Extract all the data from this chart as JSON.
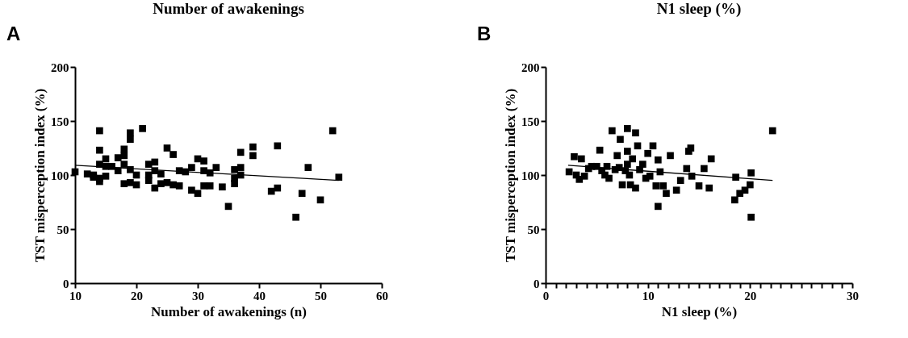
{
  "chart_data": [
    {
      "type": "scatter",
      "title": "Number of awakenings",
      "xlabel": "Number of awakenings (n)",
      "ylabel": "TST misperception index (%)",
      "annotations": [
        "A"
      ],
      "xlim": [
        10,
        60
      ],
      "xticks": [
        10,
        20,
        30,
        40,
        50,
        60
      ],
      "ylim": [
        0,
        200
      ],
      "yticks": [
        0,
        50,
        100,
        150,
        200
      ],
      "series": [
        {
          "marker": "square",
          "color": "#000000",
          "x": [
            10,
            12,
            13,
            13,
            14,
            14,
            14,
            14,
            14,
            15,
            15,
            15,
            16,
            17,
            17,
            18,
            18,
            18,
            18,
            19,
            19,
            19,
            19,
            20,
            20,
            21,
            22,
            22,
            22,
            23,
            23,
            23,
            24,
            24,
            25,
            25,
            26,
            26,
            27,
            27,
            28,
            29,
            29,
            30,
            30,
            31,
            31,
            31,
            32,
            32,
            33,
            34,
            35,
            36,
            36,
            36,
            37,
            37,
            37,
            39,
            39,
            42,
            43,
            43,
            46,
            47,
            48,
            50,
            52,
            53
          ],
          "values": [
            103,
            101,
            98,
            100,
            141,
            123,
            110,
            97,
            94,
            115,
            108,
            99,
            108,
            116,
            104,
            124,
            118,
            110,
            92,
            139,
            133,
            105,
            93,
            100,
            91,
            143,
            110,
            100,
            95,
            112,
            104,
            88,
            101,
            92,
            125,
            93,
            119,
            91,
            104,
            90,
            103,
            107,
            86,
            115,
            83,
            113,
            104,
            90,
            102,
            90,
            107,
            89,
            71,
            105,
            92,
            97,
            121,
            107,
            100,
            126,
            118,
            85,
            127,
            88,
            61,
            83,
            107,
            77,
            141,
            98
          ]
        },
        {
          "type": "line",
          "marker": "none",
          "color": "#000000",
          "line_style": "solid",
          "x": [
            10,
            53
          ],
          "values": [
            109,
            95
          ]
        }
      ]
    },
    {
      "type": "scatter",
      "title": "N1 sleep (%)",
      "xlabel": "N1 sleep (%)",
      "ylabel": "TST misperception index (%)",
      "annotations": [
        "B"
      ],
      "xlim": [
        0,
        30
      ],
      "xticks": [
        0,
        {
          "value": 1,
          "label": null
        },
        {
          "value": 2,
          "label": null
        },
        {
          "value": 3,
          "label": null
        },
        {
          "value": 4,
          "label": null
        },
        {
          "value": 5,
          "label": null
        },
        {
          "value": 6,
          "label": null
        },
        {
          "value": 7,
          "label": null
        },
        {
          "value": 8,
          "label": null
        },
        {
          "value": 9,
          "label": null
        },
        10,
        {
          "value": 11,
          "label": null
        },
        {
          "value": 12,
          "label": null
        },
        {
          "value": 13,
          "label": null
        },
        {
          "value": 14,
          "label": null
        },
        {
          "value": 15,
          "label": null
        },
        {
          "value": 16,
          "label": null
        },
        {
          "value": 17,
          "label": null
        },
        {
          "value": 18,
          "label": null
        },
        {
          "value": 19,
          "label": null
        },
        20,
        {
          "value": 21,
          "label": null
        },
        {
          "value": 22,
          "label": null
        },
        {
          "value": 23,
          "label": null
        },
        {
          "value": 24,
          "label": null
        },
        {
          "value": 25,
          "label": null
        },
        {
          "value": 26,
          "label": null
        },
        {
          "value": 27,
          "label": null
        },
        {
          "value": 28,
          "label": null
        },
        {
          "value": 29,
          "label": null
        },
        30
      ],
      "ylim": [
        0,
        200
      ],
      "yticks": [
        0,
        50,
        100,
        150,
        200
      ],
      "series": [
        {
          "marker": "square",
          "color": "#000000",
          "x": [
            2.3,
            2.8,
            3,
            3.3,
            3.5,
            3.8,
            4.2,
            4.5,
            5,
            5.3,
            5.5,
            5.8,
            6,
            6.2,
            6.5,
            6.8,
            7,
            7.2,
            7.3,
            7.5,
            7.8,
            8,
            8,
            8,
            8.2,
            8.3,
            8.5,
            8.8,
            8.8,
            9,
            9.2,
            9.5,
            9.8,
            10,
            10.2,
            10.5,
            10.8,
            11,
            11,
            11.2,
            11.5,
            11.8,
            12.2,
            12.8,
            13.2,
            13.8,
            14,
            14.2,
            14.3,
            15,
            15.5,
            16,
            16.2,
            18.5,
            18.6,
            19,
            19.5,
            20,
            20.1,
            20.1,
            22.2
          ],
          "values": [
            103,
            117,
            100,
            96,
            115,
            99,
            106,
            108,
            108,
            123,
            104,
            100,
            108,
            97,
            141,
            105,
            118,
            107,
            133,
            91,
            104,
            143,
            122,
            110,
            100,
            91,
            115,
            139,
            88,
            127,
            105,
            110,
            97,
            120,
            99,
            127,
            90,
            71,
            114,
            103,
            90,
            83,
            118,
            86,
            95,
            106,
            122,
            125,
            99,
            90,
            106,
            88,
            115,
            77,
            98,
            83,
            86,
            91,
            102,
            61,
            141
          ]
        },
        {
          "type": "line",
          "marker": "none",
          "color": "#000000",
          "line_style": "solid",
          "x": [
            2.2,
            22.2
          ],
          "values": [
            109,
            95
          ]
        }
      ]
    }
  ]
}
